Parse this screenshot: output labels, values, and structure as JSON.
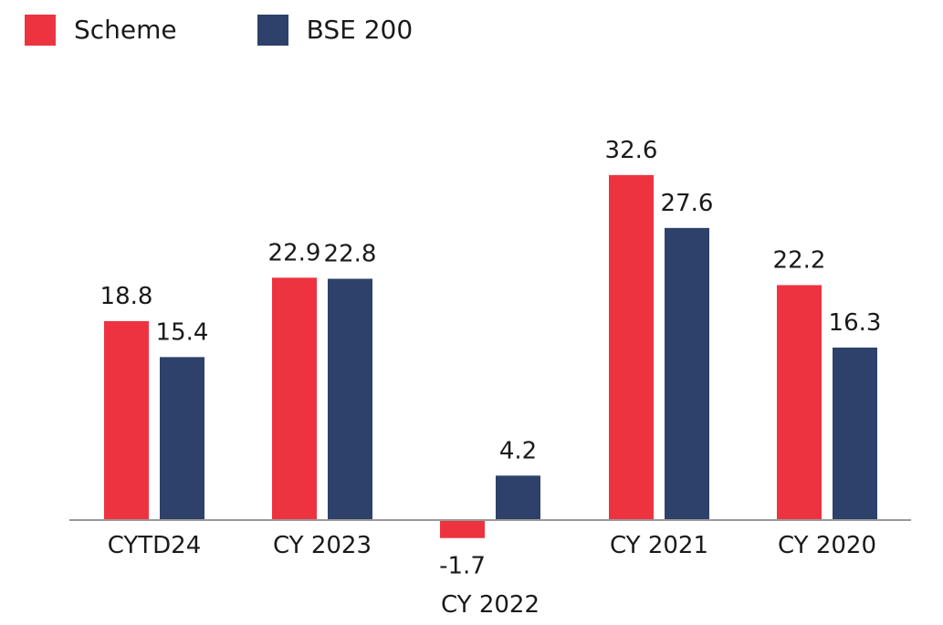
{
  "chart_data": {
    "type": "bar",
    "categories": [
      "CYTD24",
      "CY 2023",
      "CY 2022",
      "CY 2021",
      "CY 2020"
    ],
    "series": [
      {
        "name": "Scheme",
        "values": [
          18.8,
          22.9,
          -1.7,
          32.6,
          22.2
        ],
        "color": "#EE3340"
      },
      {
        "name": "BSE 200",
        "values": [
          15.4,
          22.8,
          4.2,
          27.6,
          16.3
        ],
        "color": "#2D416A"
      }
    ],
    "ylim": [
      -1.7,
      32.6
    ],
    "grid": false,
    "legend_position": "top-left"
  },
  "colors": {
    "axis": "#999999",
    "text": "#1a1a1a"
  }
}
